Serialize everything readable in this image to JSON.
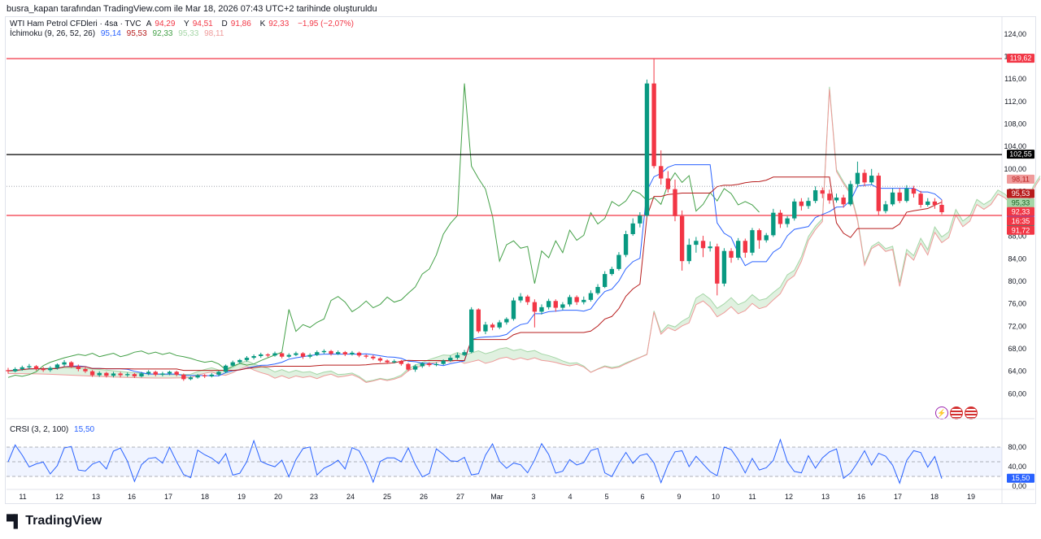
{
  "caption": "busra_kapan tarafından TradingView.com ile Mar 18, 2026 07:43 UTC+2 tarihinde oluşturuldu",
  "legend": {
    "symbol": "WTI Ham Petrol CFDleri · 4sa · TVC",
    "open_label": "A",
    "open": "94,29",
    "high_label": "Y",
    "high": "94,51",
    "low_label": "D",
    "low": "91,86",
    "close_label": "K",
    "close": "92,33",
    "change": "−1,95 (−2,07%)",
    "ichimoku_name": "İchimoku (9, 26, 52, 26)",
    "ichimoku_values": [
      "95,14",
      "95,53",
      "92,33",
      "95,33",
      "98,11"
    ],
    "rsi_name": "CRSI (3, 2, 100)",
    "rsi_value": "15,50"
  },
  "logo_text": "TradingView",
  "colors": {
    "up": "#089981",
    "down": "#f23645",
    "tenkan": "#2962ff",
    "kijun": "#b71c1c",
    "chikou": "#43a047",
    "span_a": "#a5d6a7",
    "span_b": "#ef9a9a",
    "rsi": "#2962ff",
    "hline_red": "#f23645",
    "hline_black": "#000000"
  },
  "chart_data": {
    "type": "candlestick",
    "title": "WTI Ham Petrol CFDleri · 4sa · TVC",
    "ylim": [
      56,
      126
    ],
    "y_ticks": [
      "60,00",
      "64,00",
      "68,00",
      "72,00",
      "76,00",
      "80,00",
      "84,00",
      "88,00",
      "92,00",
      "96,00",
      "100,00",
      "104,00",
      "108,00",
      "112,00",
      "116,00",
      "120,00",
      "124,00"
    ],
    "y_tick_values": [
      60,
      64,
      68,
      72,
      76,
      80,
      84,
      88,
      92,
      96,
      100,
      104,
      108,
      112,
      116,
      120,
      124
    ],
    "x_ticks": [
      "11",
      "12",
      "13",
      "16",
      "17",
      "18",
      "19",
      "20",
      "23",
      "24",
      "25",
      "26",
      "27",
      "Mar",
      "3",
      "4",
      "5",
      "6",
      "9",
      "10",
      "11",
      "12",
      "13",
      "16",
      "17",
      "18",
      "19"
    ],
    "horizontal_lines": [
      {
        "value": 119.62,
        "label": "119,62",
        "color": "#f23645"
      },
      {
        "value": 102.55,
        "label": "102,55",
        "color": "#000000"
      },
      {
        "value": 91.72,
        "label": "91,72",
        "color": "#f23645"
      }
    ],
    "price_labels": [
      {
        "value": 98.11,
        "label": "98,11",
        "bg": "#ef9a9a",
        "fg": "#b71c1c"
      },
      {
        "value": 95.53,
        "label": "95,53",
        "bg": "#b71c1c",
        "fg": "#ffffff"
      },
      {
        "value": 95.33,
        "label": "95,33",
        "bg": "#a5d6a7",
        "fg": "#1b5e20"
      },
      {
        "value": 95.14,
        "label": "95,14",
        "bg": "#2962ff",
        "fg": "#ffffff"
      },
      {
        "value": 92.33,
        "label": "92,33",
        "bg": "#089981",
        "fg": "#ffffff"
      },
      {
        "value": 92.33,
        "label": "92,33",
        "bg": "#f23645",
        "fg": "#ffffff"
      },
      {
        "value": 91.0,
        "label": "16:35",
        "bg": "#f23645",
        "fg": "#ffffff"
      },
      {
        "value": 91.72,
        "label": "91,72",
        "bg": "#f23645",
        "fg": "#ffffff"
      }
    ],
    "candles": [
      [
        64.2,
        64.0,
        64.6,
        63.6
      ],
      [
        64.0,
        64.4,
        64.7,
        63.8
      ],
      [
        64.4,
        64.7,
        65.0,
        64.1
      ],
      [
        64.7,
        64.9,
        65.3,
        64.4
      ],
      [
        64.9,
        64.4,
        65.1,
        64.1
      ],
      [
        64.4,
        64.2,
        64.8,
        63.9
      ],
      [
        64.2,
        64.6,
        64.9,
        63.9
      ],
      [
        64.6,
        65.2,
        65.4,
        64.3
      ],
      [
        65.2,
        65.6,
        66.0,
        64.9
      ],
      [
        65.6,
        64.9,
        65.8,
        64.6
      ],
      [
        64.9,
        64.4,
        65.2,
        64.0
      ],
      [
        64.4,
        64.0,
        64.7,
        63.7
      ],
      [
        64.0,
        63.3,
        64.2,
        63.0
      ],
      [
        63.3,
        63.7,
        64.0,
        63.0
      ],
      [
        63.7,
        63.2,
        63.9,
        62.9
      ],
      [
        63.2,
        63.6,
        63.9,
        62.9
      ],
      [
        63.6,
        63.3,
        63.9,
        62.9
      ],
      [
        63.3,
        63.5,
        63.8,
        63.0
      ],
      [
        63.5,
        63.1,
        63.7,
        62.8
      ],
      [
        63.1,
        63.6,
        63.9,
        62.9
      ],
      [
        63.6,
        63.9,
        64.2,
        63.3
      ],
      [
        63.9,
        63.4,
        64.1,
        63.1
      ],
      [
        63.4,
        63.6,
        63.9,
        63.1
      ],
      [
        63.6,
        63.9,
        64.1,
        63.3
      ],
      [
        63.9,
        63.4,
        64.1,
        63.1
      ],
      [
        63.4,
        62.6,
        63.6,
        62.3
      ],
      [
        62.6,
        62.9,
        63.1,
        62.4
      ],
      [
        62.9,
        63.3,
        63.5,
        62.7
      ],
      [
        63.3,
        63.1,
        63.5,
        62.8
      ],
      [
        63.1,
        63.4,
        63.7,
        62.9
      ],
      [
        63.4,
        63.9,
        64.1,
        63.1
      ],
      [
        63.9,
        65.0,
        65.2,
        63.7
      ],
      [
        65.0,
        65.6,
        65.9,
        64.8
      ],
      [
        65.6,
        66.0,
        66.2,
        65.3
      ],
      [
        66.0,
        66.4,
        66.7,
        65.7
      ],
      [
        66.4,
        66.7,
        67.0,
        66.1
      ],
      [
        66.7,
        67.0,
        67.3,
        66.4
      ],
      [
        67.0,
        66.8,
        67.2,
        66.5
      ],
      [
        66.8,
        67.2,
        67.5,
        66.6
      ],
      [
        67.2,
        66.6,
        67.3,
        66.3
      ],
      [
        66.6,
        66.9,
        67.2,
        66.4
      ],
      [
        66.9,
        67.2,
        67.5,
        66.7
      ],
      [
        67.2,
        66.6,
        67.4,
        66.2
      ],
      [
        66.6,
        66.9,
        67.2,
        66.3
      ],
      [
        66.9,
        67.4,
        67.7,
        66.7
      ],
      [
        67.4,
        67.6,
        67.9,
        67.1
      ],
      [
        67.6,
        67.1,
        67.8,
        66.8
      ],
      [
        67.1,
        67.4,
        67.7,
        66.9
      ],
      [
        67.4,
        67.0,
        67.6,
        66.7
      ],
      [
        67.0,
        67.3,
        67.6,
        66.8
      ],
      [
        67.3,
        66.8,
        67.5,
        66.5
      ],
      [
        66.8,
        66.6,
        67.0,
        66.3
      ],
      [
        66.6,
        66.3,
        66.9,
        66.0
      ],
      [
        66.3,
        65.9,
        66.5,
        65.6
      ],
      [
        65.9,
        65.6,
        66.1,
        65.3
      ],
      [
        65.6,
        65.8,
        66.1,
        65.4
      ],
      [
        65.8,
        65.3,
        66.0,
        65.0
      ],
      [
        65.3,
        64.3,
        65.5,
        64.0
      ],
      [
        64.3,
        64.9,
        65.2,
        63.9
      ],
      [
        64.9,
        65.4,
        65.6,
        64.6
      ],
      [
        65.4,
        65.1,
        65.6,
        64.8
      ],
      [
        65.1,
        65.3,
        65.6,
        64.9
      ],
      [
        65.3,
        65.9,
        66.1,
        65.1
      ],
      [
        65.9,
        66.4,
        66.8,
        65.7
      ],
      [
        66.4,
        66.9,
        67.3,
        66.1
      ],
      [
        66.9,
        67.4,
        67.8,
        66.7
      ],
      [
        67.4,
        75.0,
        75.4,
        67.2
      ],
      [
        75.0,
        71.1,
        75.2,
        70.8
      ],
      [
        71.1,
        72.3,
        72.8,
        70.6
      ],
      [
        72.3,
        71.8,
        72.6,
        71.3
      ],
      [
        71.8,
        72.7,
        73.1,
        71.5
      ],
      [
        72.7,
        73.3,
        73.6,
        72.3
      ],
      [
        73.3,
        76.6,
        77.1,
        73.0
      ],
      [
        76.6,
        77.3,
        77.9,
        76.2
      ],
      [
        77.3,
        76.3,
        77.6,
        75.8
      ],
      [
        76.3,
        74.6,
        76.8,
        71.8
      ],
      [
        74.6,
        75.4,
        75.9,
        74.1
      ],
      [
        75.4,
        76.5,
        76.9,
        75.0
      ],
      [
        76.5,
        75.3,
        76.8,
        74.6
      ],
      [
        75.3,
        75.9,
        76.3,
        74.9
      ],
      [
        75.9,
        77.2,
        77.6,
        75.5
      ],
      [
        77.2,
        76.3,
        77.5,
        75.8
      ],
      [
        76.3,
        76.7,
        77.3,
        75.9
      ],
      [
        76.7,
        77.9,
        78.4,
        76.4
      ],
      [
        77.9,
        79.0,
        79.5,
        77.6
      ],
      [
        79.0,
        81.3,
        81.8,
        78.8
      ],
      [
        81.3,
        82.2,
        82.6,
        81.0
      ],
      [
        82.2,
        84.7,
        85.2,
        81.9
      ],
      [
        84.7,
        88.4,
        89.0,
        84.3
      ],
      [
        88.4,
        90.3,
        91.2,
        88.1
      ],
      [
        90.3,
        91.7,
        92.3,
        89.6
      ],
      [
        91.7,
        115.2,
        115.9,
        91.4
      ],
      [
        115.2,
        100.5,
        119.6,
        100.1
      ],
      [
        100.5,
        98.3,
        103.3,
        97.2
      ],
      [
        98.3,
        96.4,
        99.6,
        95.8
      ],
      [
        96.4,
        91.6,
        98.1,
        90.7
      ],
      [
        91.6,
        83.6,
        92.6,
        81.9
      ],
      [
        83.6,
        86.5,
        87.6,
        83.1
      ],
      [
        86.5,
        87.2,
        87.9,
        85.1
      ],
      [
        87.2,
        85.9,
        88.1,
        84.3
      ],
      [
        85.9,
        86.2,
        87.1,
        85.3
      ],
      [
        86.2,
        79.6,
        86.7,
        77.5
      ],
      [
        79.6,
        85.4,
        85.9,
        79.1
      ],
      [
        85.4,
        84.2,
        85.9,
        83.3
      ],
      [
        84.2,
        87.2,
        87.7,
        83.8
      ],
      [
        87.2,
        85.1,
        87.6,
        84.2
      ],
      [
        85.1,
        89.1,
        89.5,
        84.6
      ],
      [
        89.1,
        87.3,
        89.4,
        85.8
      ],
      [
        87.3,
        88.2,
        88.6,
        86.9
      ],
      [
        88.2,
        92.2,
        92.9,
        87.9
      ],
      [
        92.2,
        90.2,
        92.7,
        89.5
      ],
      [
        90.2,
        91.2,
        91.6,
        89.6
      ],
      [
        91.2,
        94.2,
        94.7,
        90.8
      ],
      [
        94.2,
        93.4,
        94.8,
        92.6
      ],
      [
        93.4,
        94.3,
        94.9,
        92.9
      ],
      [
        94.3,
        96.2,
        96.9,
        93.9
      ],
      [
        96.2,
        95.6,
        96.7,
        94.8
      ],
      [
        95.6,
        94.4,
        96.3,
        93.8
      ],
      [
        94.4,
        94.9,
        95.6,
        94.0
      ],
      [
        94.9,
        93.7,
        95.4,
        93.1
      ],
      [
        93.7,
        97.3,
        97.9,
        93.4
      ],
      [
        97.3,
        99.3,
        101.3,
        96.7
      ],
      [
        99.3,
        97.6,
        99.9,
        96.9
      ],
      [
        97.6,
        98.8,
        100.0,
        97.2
      ],
      [
        98.8,
        92.5,
        99.3,
        91.8
      ],
      [
        92.5,
        93.7,
        94.3,
        92.1
      ],
      [
        93.7,
        95.8,
        96.5,
        93.4
      ],
      [
        95.8,
        94.3,
        96.6,
        93.9
      ],
      [
        94.3,
        96.5,
        97.1,
        94.0
      ],
      [
        96.5,
        95.6,
        97.0,
        94.9
      ],
      [
        95.6,
        93.6,
        96.1,
        93.1
      ],
      [
        93.6,
        94.2,
        94.8,
        93.3
      ],
      [
        94.2,
        93.6,
        94.8,
        92.9
      ],
      [
        93.6,
        92.3,
        94.5,
        91.9
      ]
    ],
    "tenkan": [
      [
        64.1,
        64.3
      ],
      [
        64.6,
        64.3
      ],
      [
        65.2,
        64.6
      ],
      [
        65.8,
        64.3
      ],
      [
        66.4,
        63.8
      ],
      [
        67.0,
        63.6
      ],
      [
        67.6,
        63.4
      ],
      [
        68.2,
        63.3
      ],
      [
        69.8,
        63.4
      ],
      [
        70.7,
        63.6
      ],
      [
        71.6,
        63.2
      ],
      [
        72.2,
        63.0
      ],
      [
        72.8,
        63.2
      ],
      [
        73.4,
        63.5
      ],
      [
        74.0,
        64.1
      ],
      [
        74.6,
        64.9
      ],
      [
        75.2,
        65.6
      ],
      [
        75.8,
        66.0
      ],
      [
        76.4,
        66.4
      ],
      [
        77.0,
        66.8
      ],
      [
        77.6,
        67.0
      ],
      [
        78.2,
        67.1
      ],
      [
        78.8,
        67.0
      ],
      [
        79.4,
        66.9
      ],
      [
        80.0,
        66.9
      ],
      [
        80.6,
        67.0
      ],
      [
        81.2,
        66.8
      ],
      [
        81.8,
        66.5
      ],
      [
        82.4,
        66.1
      ],
      [
        83.0,
        65.7
      ],
      [
        83.6,
        65.2
      ],
      [
        84.2,
        65.1
      ],
      [
        84.8,
        65.1
      ],
      [
        85.4,
        65.3
      ],
      [
        86.0,
        65.6
      ],
      [
        86.6,
        66.2
      ],
      [
        87.2,
        70.9
      ],
      [
        87.8,
        71.1
      ],
      [
        88.4,
        71.6
      ],
      [
        89.0,
        72.7
      ],
      [
        89.6,
        73.1
      ],
      [
        90.2,
        74.2
      ],
      [
        90.8,
        74.6
      ],
      [
        91.4,
        74.8
      ],
      [
        92.0,
        75.3
      ],
      [
        92.6,
        75.8
      ],
      [
        93.2,
        76.2
      ],
      [
        93.8,
        76.9
      ],
      [
        94.4,
        78.6
      ],
      [
        95.0,
        80.7
      ],
      [
        95.6,
        84.1
      ],
      [
        96.2,
        94.2
      ],
      [
        96.8,
        97.5
      ],
      [
        97.4,
        98.7
      ],
      [
        98.0,
        99.1
      ],
      [
        98.6,
        99.1
      ],
      [
        99.2,
        97.7
      ],
      [
        99.8,
        90.6
      ],
      [
        100.4,
        90.5
      ],
      [
        101.0,
        88.6
      ],
      [
        101.6,
        87.7
      ],
      [
        102.2,
        87.6
      ],
      [
        102.8,
        88.3
      ],
      [
        103.4,
        89.0
      ],
      [
        104.0,
        91.1
      ],
      [
        104.6,
        92.2
      ],
      [
        105.2,
        93.3
      ],
      [
        105.8,
        95.6
      ],
      [
        106.4,
        96.7
      ],
      [
        107.0,
        96.7
      ],
      [
        107.6,
        95.6
      ],
      [
        108.2,
        95.2
      ],
      [
        108.8,
        95.1
      ]
    ],
    "kijun": [
      [
        64.1,
        64.2
      ],
      [
        68.0,
        64.0
      ],
      [
        72.0,
        63.5
      ],
      [
        77.0,
        63.6
      ],
      [
        82.0,
        63.8
      ],
      [
        88.0,
        64.0
      ],
      [
        94.0,
        64.0
      ],
      [
        100.0,
        64.6
      ],
      [
        105.0,
        65.2
      ],
      [
        110.0,
        65.6
      ],
      [
        115.0,
        66.2
      ],
      [
        120.0,
        66.4
      ],
      [
        125.0,
        66.6
      ],
      [
        130.0,
        66.6
      ],
      [
        135.0,
        66.4
      ],
      [
        140.0,
        66.0
      ],
      [
        145.0,
        65.8
      ],
      [
        150.0,
        65.6
      ],
      [
        155.0,
        65.5
      ],
      [
        160.0,
        65.4
      ],
      [
        165.0,
        65.5
      ],
      [
        170.0,
        65.9
      ],
      [
        175.0,
        66.1
      ],
      [
        180.0,
        66.4
      ],
      [
        185.0,
        70.0
      ],
      [
        190.0,
        70.1
      ],
      [
        195.0,
        72.5
      ],
      [
        200.0,
        73.0
      ],
      [
        205.0,
        74.0
      ],
      [
        210.0,
        74.8
      ],
      [
        215.0,
        75.2
      ],
      [
        220.0,
        75.8
      ],
      [
        225.0,
        76.9
      ],
      [
        230.0,
        82.0
      ],
      [
        235.0,
        92.4
      ],
      [
        240.0,
        94.5
      ],
      [
        245.0,
        94.5
      ],
      [
        250.0,
        97.6
      ],
      [
        255.0,
        97.3
      ]
    ],
    "rsi_levels": [
      10,
      50,
      90
    ],
    "rsi_ticks": [
      "80,00",
      "40,00",
      "0,00"
    ],
    "rsi_tick_values": [
      80,
      40,
      0
    ],
    "rsi_current": 15.5
  }
}
